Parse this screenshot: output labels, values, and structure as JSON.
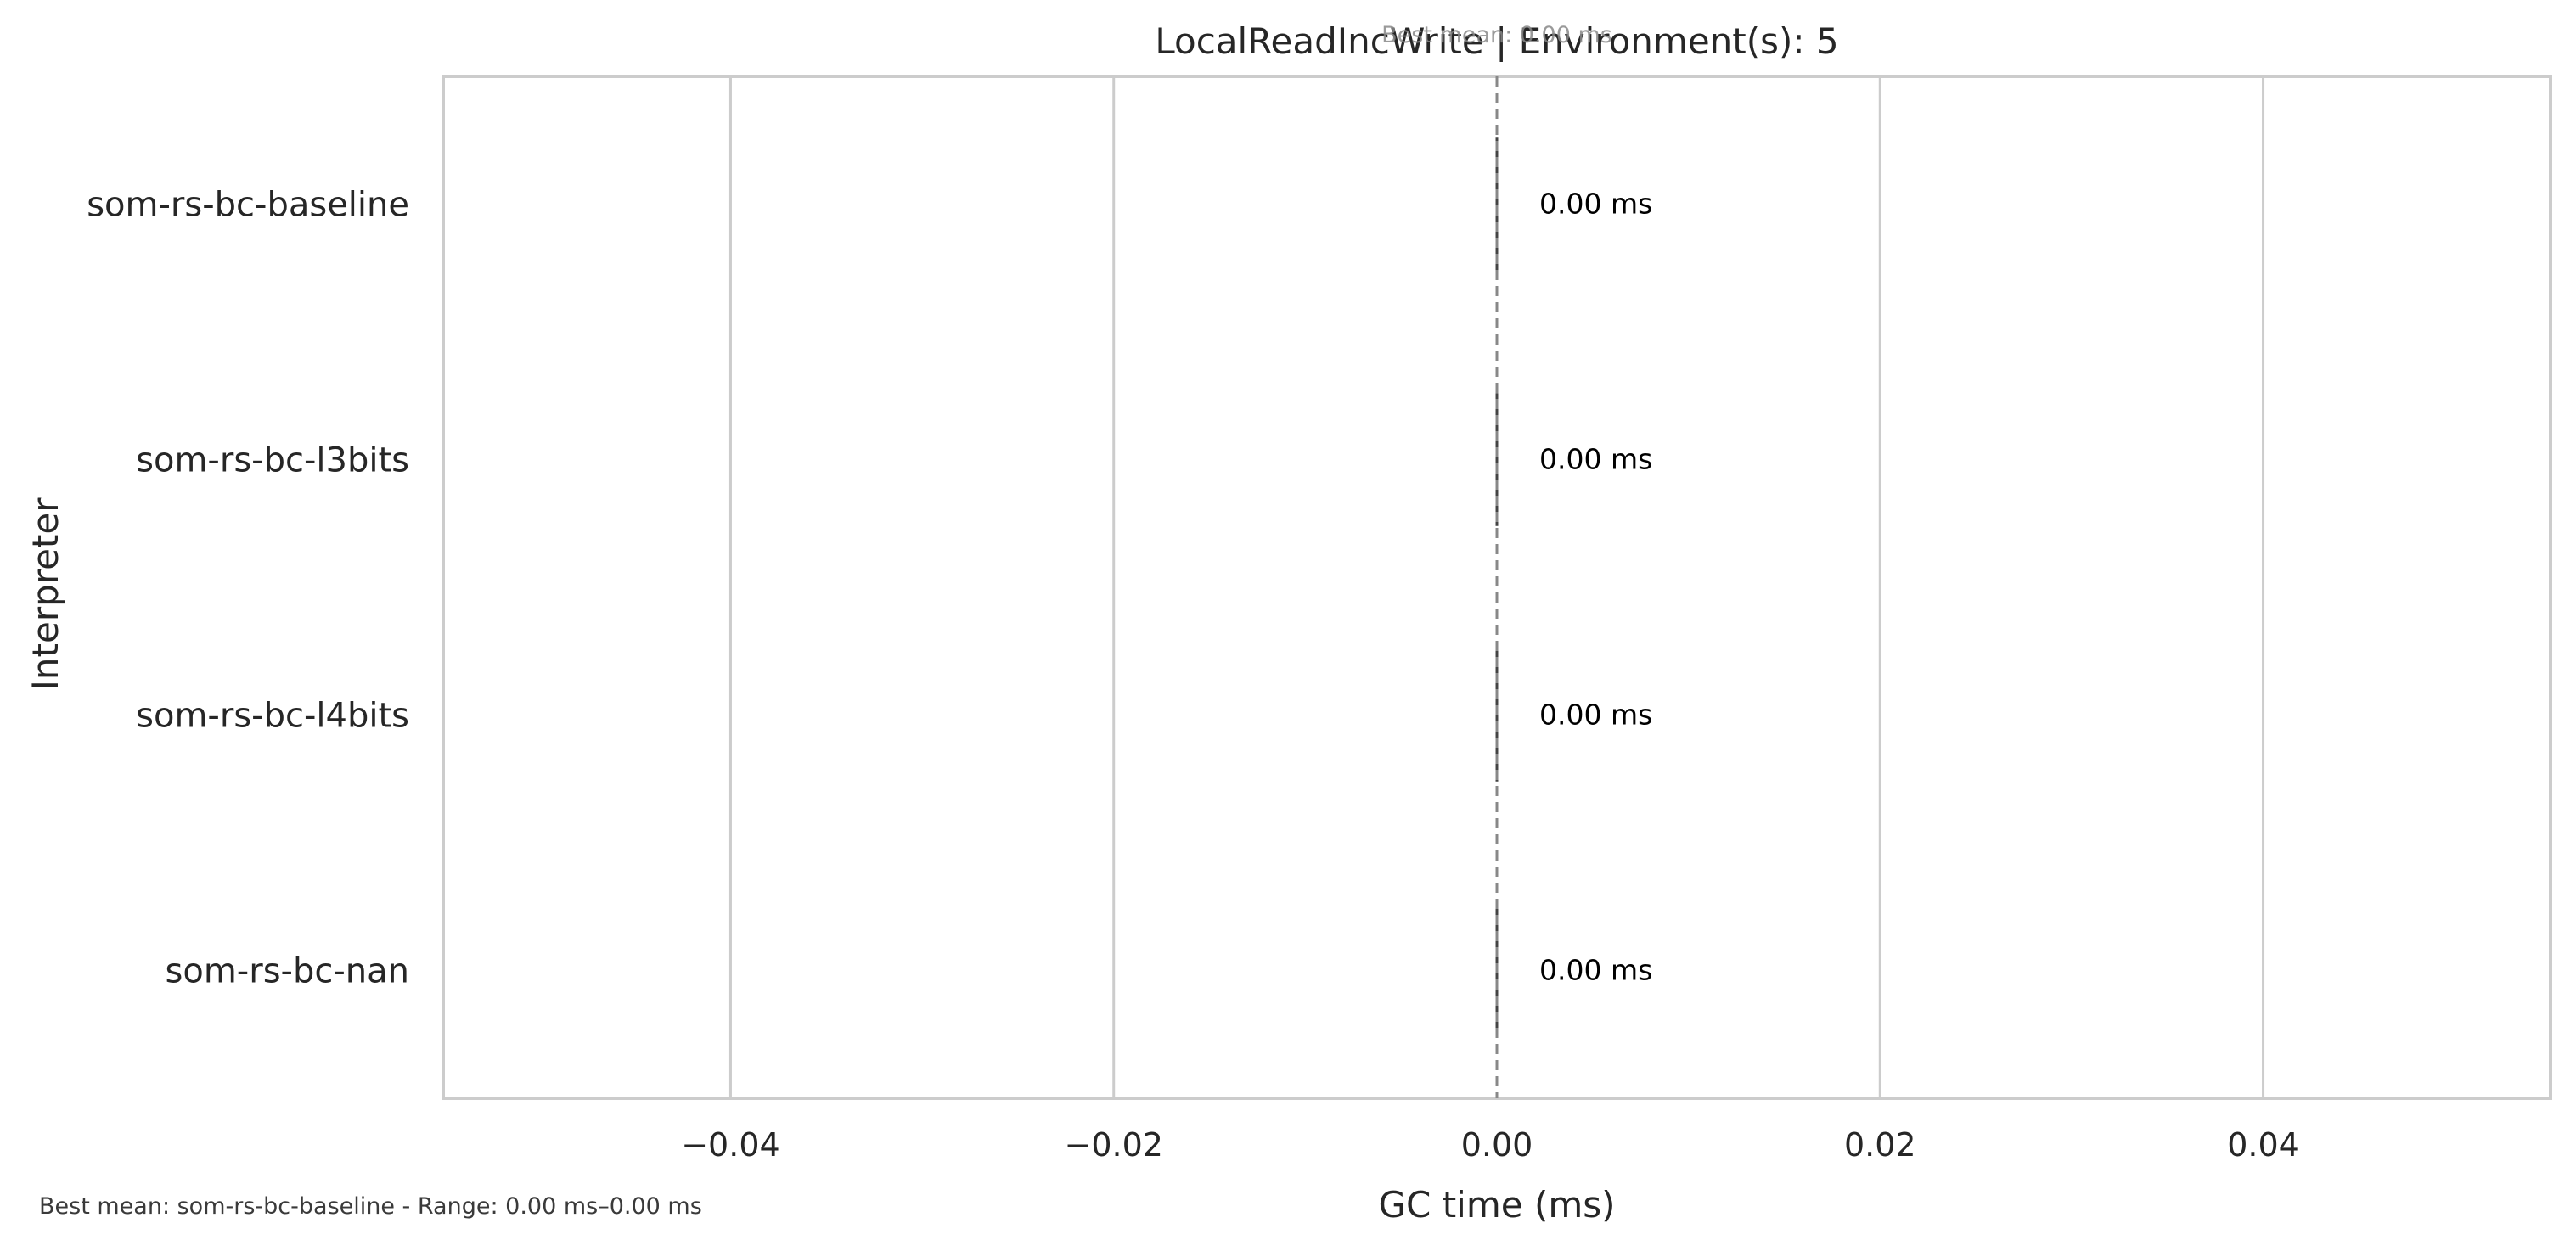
{
  "chart_data": {
    "type": "bar",
    "orientation": "horizontal",
    "title": "LocalReadIncWrite | Environment(s): 5",
    "xlabel": "GC time (ms)",
    "ylabel": "Interpreter",
    "categories": [
      "som-rs-bc-baseline",
      "som-rs-bc-l3bits",
      "som-rs-bc-l4bits",
      "som-rs-bc-nan"
    ],
    "values": [
      0.0,
      0.0,
      0.0,
      0.0
    ],
    "value_labels": [
      "0.00 ms",
      "0.00 ms",
      "0.00 ms",
      "0.00 ms"
    ],
    "xlim": [
      -0.055,
      0.055
    ],
    "xticks": [
      -0.04,
      -0.02,
      0.0,
      0.02,
      0.04
    ],
    "xtick_labels": [
      "−0.04",
      "−0.02",
      "0.00",
      "0.02",
      "0.04"
    ],
    "reference_line": {
      "value": 0.0,
      "label": "Best mean: 0.00 ms",
      "style": "dashed"
    },
    "grid": "vertical",
    "legend": "none",
    "colors": {
      "frame": "#cccccc",
      "grid": "#cccccc",
      "text": "#262626",
      "bar_edge": "#444444",
      "ref_line": "#888888",
      "footnote": "#3a3a3a"
    }
  },
  "footnote": "Best mean: som-rs-bc-baseline - Range: 0.00 ms–0.00 ms"
}
